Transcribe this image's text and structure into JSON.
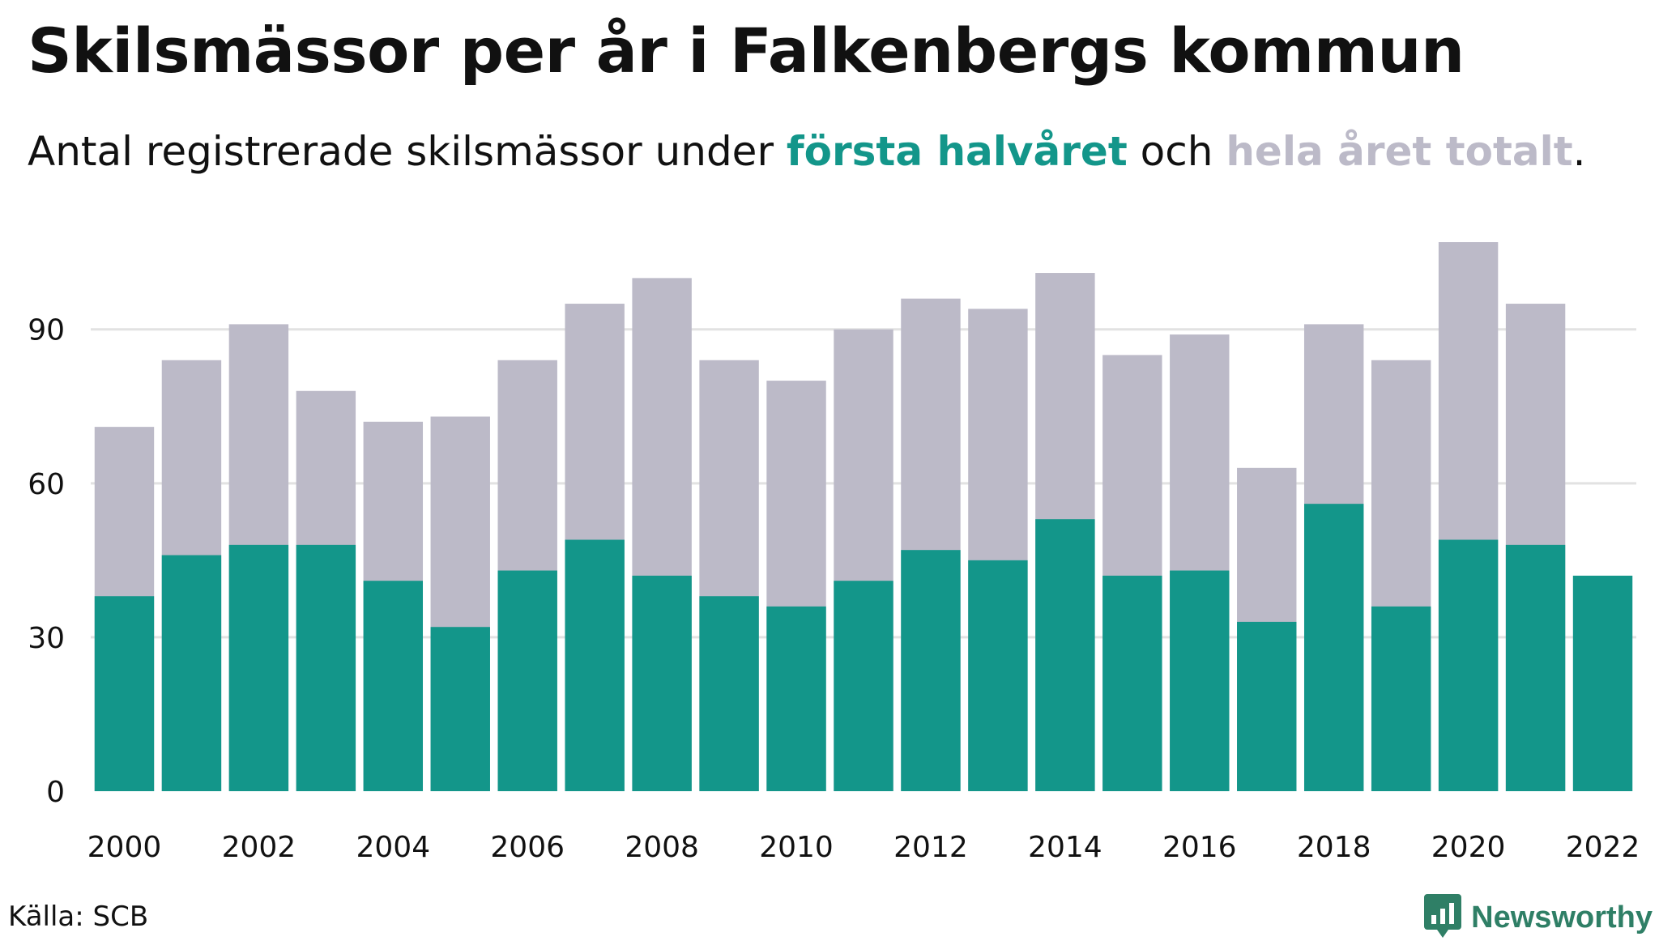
{
  "header": {
    "title": "Skilsmässor per år i Falkenbergs kommun",
    "subtitle_prefix": "Antal registrerade skilsmässor under ",
    "subtitle_first": "första halvåret",
    "subtitle_mid": " och ",
    "subtitle_total": "hela året totalt",
    "subtitle_suffix": "."
  },
  "footer": {
    "source": "Källa: SCB",
    "brand": "Newsworthy",
    "brand_icon": "newsworthy-logo-icon"
  },
  "colors": {
    "first_half": "#13968a",
    "full_year": "#bcbac8",
    "grid": "#e2e2e2",
    "brand": "#2f7f66"
  },
  "chart_data": {
    "type": "bar",
    "title": "Skilsmässor per år i Falkenbergs kommun",
    "categories": [
      2000,
      2001,
      2002,
      2003,
      2004,
      2005,
      2006,
      2007,
      2008,
      2009,
      2010,
      2011,
      2012,
      2013,
      2014,
      2015,
      2016,
      2017,
      2018,
      2019,
      2020,
      2021,
      2022
    ],
    "x_tick_labels": [
      "2000",
      "2002",
      "2004",
      "2006",
      "2008",
      "2010",
      "2012",
      "2014",
      "2016",
      "2018",
      "2020",
      "2022"
    ],
    "series": [
      {
        "name": "hela året totalt",
        "values": [
          71,
          84,
          91,
          78,
          72,
          73,
          84,
          95,
          100,
          84,
          80,
          90,
          96,
          94,
          101,
          85,
          89,
          63,
          91,
          84,
          107,
          95,
          null
        ]
      },
      {
        "name": "första halvåret",
        "values": [
          38,
          46,
          48,
          48,
          41,
          32,
          43,
          49,
          42,
          38,
          36,
          41,
          47,
          45,
          53,
          42,
          43,
          33,
          56,
          36,
          49,
          48,
          42
        ]
      }
    ],
    "overlay": true,
    "ylim": [
      0,
      110
    ],
    "yticks": [
      0,
      30,
      60,
      90
    ],
    "xlabel": "",
    "ylabel": "",
    "grid": true,
    "legend": "none"
  }
}
